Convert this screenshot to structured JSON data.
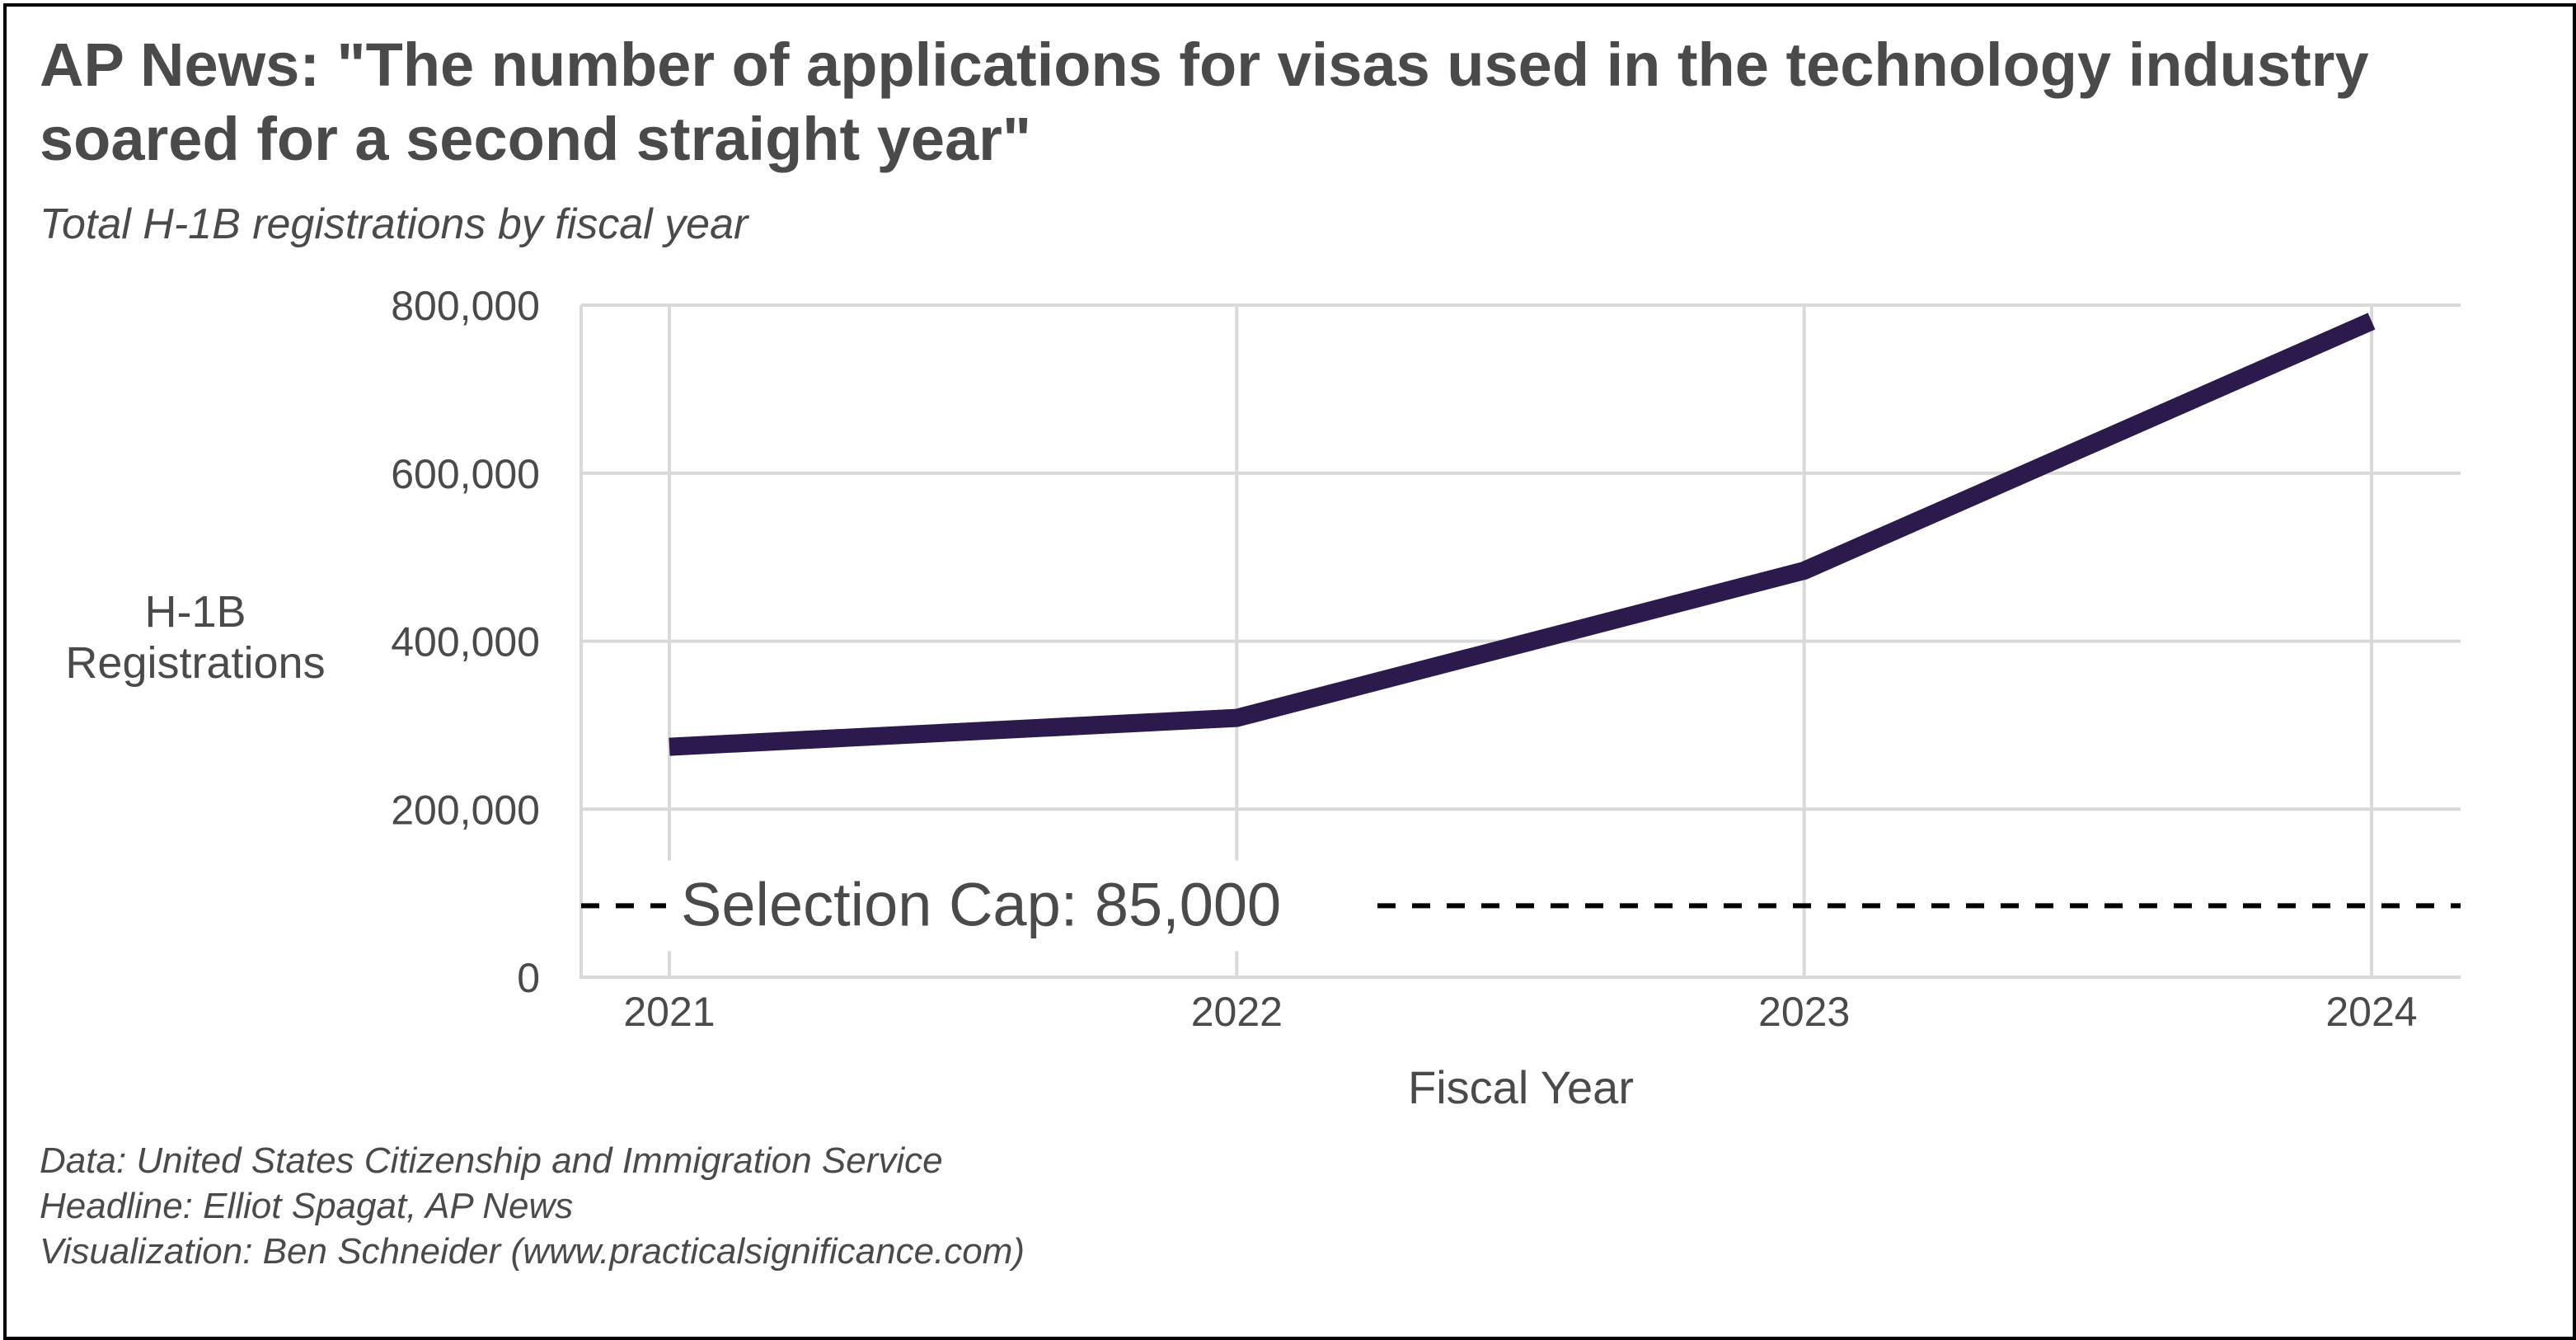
{
  "title": "AP News: \"The number of applications for visas used in the technology industry soared for a second straight year\"",
  "subtitle": "Total H-1B registrations by fiscal year",
  "caption": {
    "line1": "Data: United States Citizenship and Immigration Service",
    "line2": "Headline: Elliot Spagat, AP News",
    "line3": "Visualization: Ben Schneider (www.practicalsignificance.com)"
  },
  "colors": {
    "line": "#2d1a4c",
    "grid": "#d9d9d9",
    "text": "#4a4a4a",
    "reference": "#000000"
  },
  "chart_data": {
    "type": "line",
    "xlabel": "Fiscal Year",
    "ylabel_lines": [
      "H-1B",
      "Registrations"
    ],
    "x": [
      2021,
      2022,
      2023,
      2024
    ],
    "series": [
      {
        "values": [
          274237,
          308613,
          483927,
          780884
        ]
      }
    ],
    "ylim": [
      0,
      800000
    ],
    "yticks": [
      0,
      200000,
      400000,
      600000,
      800000
    ],
    "ytick_labels": [
      "0",
      "200,000",
      "400,000",
      "600,000",
      "800,000"
    ],
    "xticks": [
      2021,
      2022,
      2023,
      2024
    ],
    "xtick_labels": [
      "2021",
      "2022",
      "2023",
      "2024"
    ],
    "grid": true,
    "legend": "none",
    "reference_line": {
      "value": 85000,
      "label": "Selection Cap: 85,000",
      "style": "dashed"
    }
  }
}
